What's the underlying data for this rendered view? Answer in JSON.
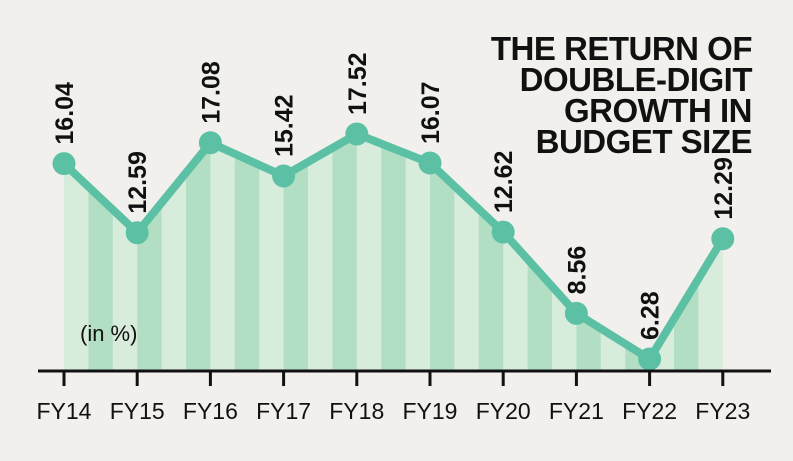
{
  "chart_data": {
    "type": "area",
    "title_lines": [
      "THE RETURN OF",
      "DOUBLE-DIGIT",
      "GROWTH IN",
      "BUDGET SIZE"
    ],
    "unit_note": "(in %)",
    "categories": [
      "FY14",
      "FY15",
      "FY16",
      "FY17",
      "FY18",
      "FY19",
      "FY20",
      "FY21",
      "FY22",
      "FY23"
    ],
    "values": [
      16.04,
      12.59,
      17.08,
      15.42,
      17.52,
      16.07,
      12.62,
      8.56,
      6.28,
      12.29
    ],
    "value_labels": [
      "16.04",
      "12.59",
      "17.08",
      "15.42",
      "17.52",
      "16.07",
      "12.62",
      "8.56",
      "6.28",
      "12.29"
    ],
    "ylim": [
      6.28,
      17.52
    ],
    "grid": false,
    "legend": "none",
    "colors": {
      "line": "#5cc1a4",
      "marker": "#5cc1a4",
      "stripe_dark": "#b2dfc3",
      "stripe_light": "#d8ecdc",
      "axis": "#111111",
      "background": "#f1f0ec"
    }
  }
}
